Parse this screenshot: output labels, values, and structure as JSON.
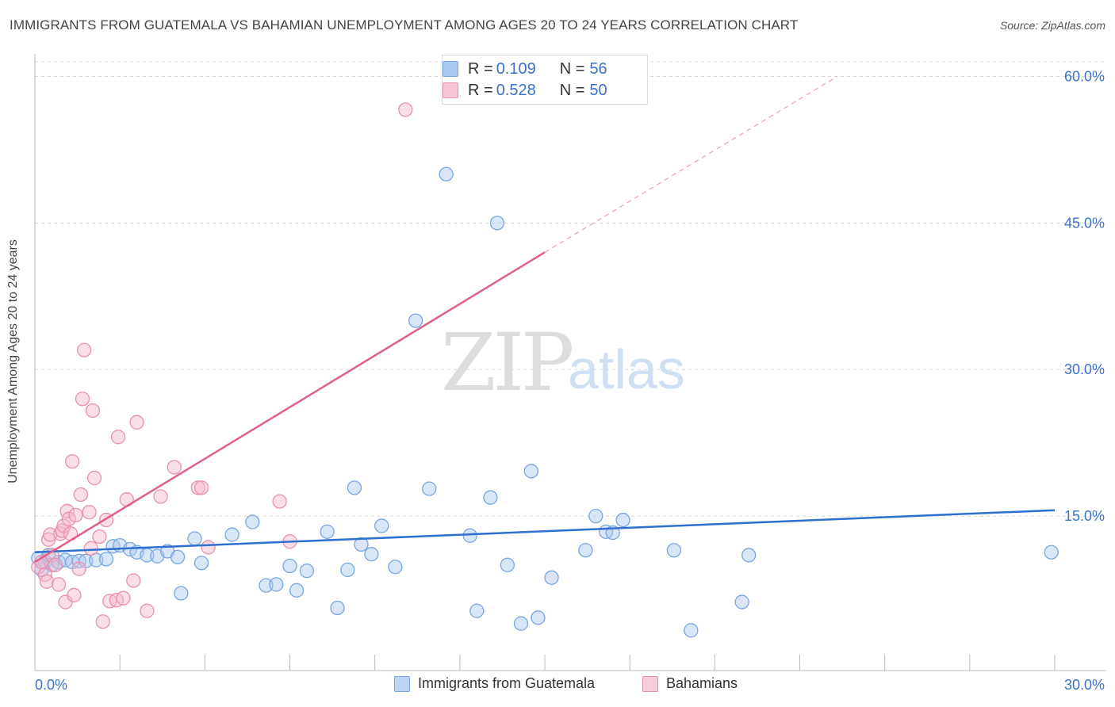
{
  "chart_data": {
    "type": "scatter",
    "title": "IMMIGRANTS FROM GUATEMALA VS BAHAMIAN UNEMPLOYMENT AMONG AGES 20 TO 24 YEARS CORRELATION CHART",
    "source": "Source: ZipAtlas.com",
    "xlabel": "",
    "ylabel": "Unemployment Among Ages 20 to 24 years",
    "xlim": [
      0,
      30
    ],
    "ylim": [
      0,
      61.5
    ],
    "x_tick_labels": [
      "0.0%",
      "30.0%"
    ],
    "y_ticks": [
      15,
      30,
      45,
      60
    ],
    "y_tick_labels": [
      "15.0%",
      "30.0%",
      "45.0%",
      "60.0%"
    ],
    "watermark": "ZIPatlas",
    "series": [
      {
        "name": "Immigrants from Guatemala",
        "color": "#7aa6e0",
        "fill": "#a9c7ef",
        "line_color": "#2f6fcf",
        "R": "0.109",
        "N": "56",
        "trend": {
          "x0": 0,
          "y0": 11.3,
          "x1": 30,
          "y1": 15.6
        },
        "points": [
          [
            0.1,
            10.7
          ],
          [
            0.2,
            9.5
          ],
          [
            0.3,
            10.3
          ],
          [
            0.4,
            11.0
          ],
          [
            0.5,
            10.0
          ],
          [
            0.7,
            10.3
          ],
          [
            0.9,
            10.5
          ],
          [
            1.1,
            10.3
          ],
          [
            1.3,
            10.4
          ],
          [
            1.5,
            10.4
          ],
          [
            1.8,
            10.5
          ],
          [
            2.1,
            10.6
          ],
          [
            2.3,
            11.9
          ],
          [
            2.5,
            12.0
          ],
          [
            2.8,
            11.6
          ],
          [
            3.0,
            11.3
          ],
          [
            3.3,
            11.0
          ],
          [
            3.6,
            10.9
          ],
          [
            3.9,
            11.4
          ],
          [
            4.2,
            10.8
          ],
          [
            4.3,
            7.1
          ],
          [
            4.7,
            12.7
          ],
          [
            4.9,
            10.2
          ],
          [
            5.8,
            13.1
          ],
          [
            6.4,
            14.4
          ],
          [
            6.8,
            7.9
          ],
          [
            7.1,
            8.0
          ],
          [
            7.5,
            9.9
          ],
          [
            7.7,
            7.4
          ],
          [
            8.0,
            9.4
          ],
          [
            8.6,
            13.4
          ],
          [
            8.9,
            5.6
          ],
          [
            9.2,
            9.5
          ],
          [
            9.4,
            17.9
          ],
          [
            9.6,
            12.1
          ],
          [
            9.9,
            11.1
          ],
          [
            10.2,
            14.0
          ],
          [
            10.6,
            9.8
          ],
          [
            11.2,
            35.0
          ],
          [
            11.6,
            17.8
          ],
          [
            12.1,
            50.0
          ],
          [
            12.8,
            13.0
          ],
          [
            13.0,
            5.3
          ],
          [
            13.4,
            16.9
          ],
          [
            13.6,
            45.0
          ],
          [
            13.9,
            10.0
          ],
          [
            14.3,
            4.0
          ],
          [
            14.6,
            19.6
          ],
          [
            14.8,
            4.6
          ],
          [
            15.2,
            8.7
          ],
          [
            16.2,
            11.5
          ],
          [
            16.5,
            15.0
          ],
          [
            16.8,
            13.4
          ],
          [
            17.3,
            14.6
          ],
          [
            18.8,
            11.5
          ],
          [
            20.8,
            6.2
          ],
          [
            21.0,
            11.0
          ],
          [
            19.3,
            3.3
          ],
          [
            29.9,
            11.3
          ],
          [
            17.0,
            13.3
          ]
        ]
      },
      {
        "name": "Bahamians",
        "color": "#e890b0",
        "fill": "#f6b8cc",
        "line_color": "#e0608a",
        "R": "0.528",
        "N": "50",
        "trend": {
          "x0": 0,
          "y0": 10.3,
          "x1": 15.0,
          "y1": 42.0,
          "dash_x1": 23.6,
          "dash_y1": 60.0
        },
        "points": [
          [
            0.1,
            9.8
          ],
          [
            0.2,
            10.3
          ],
          [
            0.3,
            9.0
          ],
          [
            0.35,
            8.3
          ],
          [
            0.4,
            12.6
          ],
          [
            0.45,
            13.1
          ],
          [
            0.5,
            11.0
          ],
          [
            0.6,
            10.0
          ],
          [
            0.7,
            8.0
          ],
          [
            0.75,
            13.2
          ],
          [
            0.8,
            13.5
          ],
          [
            0.85,
            14.0
          ],
          [
            0.9,
            6.2
          ],
          [
            0.95,
            15.5
          ],
          [
            1.0,
            14.7
          ],
          [
            1.05,
            13.2
          ],
          [
            1.1,
            20.6
          ],
          [
            1.15,
            6.9
          ],
          [
            1.2,
            15.1
          ],
          [
            1.3,
            9.6
          ],
          [
            1.35,
            17.2
          ],
          [
            1.4,
            27.0
          ],
          [
            1.45,
            32.0
          ],
          [
            1.6,
            15.4
          ],
          [
            1.65,
            11.7
          ],
          [
            1.7,
            25.8
          ],
          [
            1.75,
            18.9
          ],
          [
            1.9,
            12.9
          ],
          [
            2.0,
            4.2
          ],
          [
            2.1,
            14.6
          ],
          [
            2.2,
            6.3
          ],
          [
            2.4,
            6.4
          ],
          [
            2.45,
            23.1
          ],
          [
            2.6,
            6.6
          ],
          [
            2.7,
            16.7
          ],
          [
            2.9,
            8.4
          ],
          [
            3.0,
            24.6
          ],
          [
            3.3,
            5.3
          ],
          [
            3.7,
            17.0
          ],
          [
            4.1,
            20.0
          ],
          [
            4.8,
            17.9
          ],
          [
            4.9,
            17.9
          ],
          [
            5.1,
            11.8
          ],
          [
            7.2,
            16.5
          ],
          [
            7.5,
            12.4
          ],
          [
            10.9,
            56.6
          ]
        ]
      }
    ]
  },
  "legend_top": {
    "rows": [
      {
        "r_label": "R = ",
        "r_value": "0.109",
        "n_label": "N = ",
        "n_value": "56"
      },
      {
        "r_label": "R = ",
        "r_value": "0.528",
        "n_label": "N = ",
        "n_value": "50"
      }
    ]
  },
  "legend_bottom": {
    "items": [
      {
        "label": "Immigrants from Guatemala"
      },
      {
        "label": "Bahamians"
      }
    ]
  }
}
